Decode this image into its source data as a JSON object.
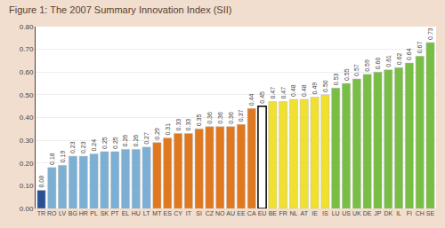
{
  "chart_data": {
    "type": "bar",
    "title": "Figure 1: The 2007 Summary Innovation Index (SII)",
    "categories": [
      "TR",
      "RO",
      "LV",
      "BG",
      "HR",
      "PL",
      "SK",
      "PT",
      "EL",
      "HU",
      "LT",
      "MT",
      "ES",
      "CY",
      "IT",
      "SI",
      "CZ",
      "NO",
      "AU",
      "EE",
      "CA",
      "EU",
      "BE",
      "FR",
      "NL",
      "AT",
      "IE",
      "IS",
      "LU",
      "US",
      "UK",
      "DE",
      "JP",
      "DK",
      "IL",
      "FI",
      "CH",
      "SE"
    ],
    "values": [
      0.08,
      0.18,
      0.19,
      0.23,
      0.23,
      0.24,
      0.25,
      0.25,
      0.26,
      0.26,
      0.27,
      0.29,
      0.31,
      0.33,
      0.33,
      0.35,
      0.36,
      0.36,
      0.36,
      0.37,
      0.44,
      0.45,
      0.47,
      0.47,
      0.48,
      0.48,
      0.49,
      0.5,
      0.53,
      0.55,
      0.57,
      0.59,
      0.6,
      0.61,
      0.62,
      0.64,
      0.67,
      0.73
    ],
    "value_labels": [
      "0.08",
      "0.18",
      "0.19",
      "0.23",
      "0.23",
      "0.24",
      "0.25",
      "0.25",
      "0.26",
      "0.26",
      "0.27",
      "0.29",
      "0.31",
      "0.33",
      "0.33",
      "0.35",
      "0.36",
      "0.36",
      "0.36",
      "0.37",
      "0.44",
      "0.45",
      "0.47",
      "0.47",
      "0.48",
      "0.48",
      "0.49",
      "0.50",
      "0.53",
      "0.55",
      "0.57",
      "0.59",
      "0.60",
      "0.61",
      "0.62",
      "0.64",
      "0.67",
      "0.73"
    ],
    "colors": [
      "#2b4f96",
      "#7bafd4",
      "#7bafd4",
      "#7bafd4",
      "#7bafd4",
      "#7bafd4",
      "#7bafd4",
      "#7bafd4",
      "#7bafd4",
      "#7bafd4",
      "#7bafd4",
      "#e07820",
      "#e07820",
      "#e07820",
      "#e07820",
      "#e07820",
      "#e07820",
      "#e07820",
      "#e07820",
      "#e07820",
      "#e07820",
      "#ffffff",
      "#f0e030",
      "#f0e030",
      "#f0e030",
      "#f0e030",
      "#f0e030",
      "#f0e030",
      "#78be44",
      "#78be44",
      "#78be44",
      "#78be44",
      "#78be44",
      "#78be44",
      "#78be44",
      "#78be44",
      "#78be44",
      "#78be44"
    ],
    "ylim": [
      0.0,
      0.8
    ],
    "yticks": [
      {
        "value": 0,
        "label": "0.00"
      },
      {
        "value": 0.1,
        "label": "0.10"
      },
      {
        "value": 0.2,
        "label": "0.20"
      },
      {
        "value": 0.3,
        "label": "0.30"
      },
      {
        "value": 0.4,
        "label": "0.40"
      },
      {
        "value": 0.5,
        "label": "0.50"
      },
      {
        "value": 0.6,
        "label": "0.60"
      },
      {
        "value": 0.7,
        "label": "0.70"
      },
      {
        "value": 0.8,
        "label": "0.80"
      }
    ],
    "grid": true,
    "data_labels": true
  }
}
